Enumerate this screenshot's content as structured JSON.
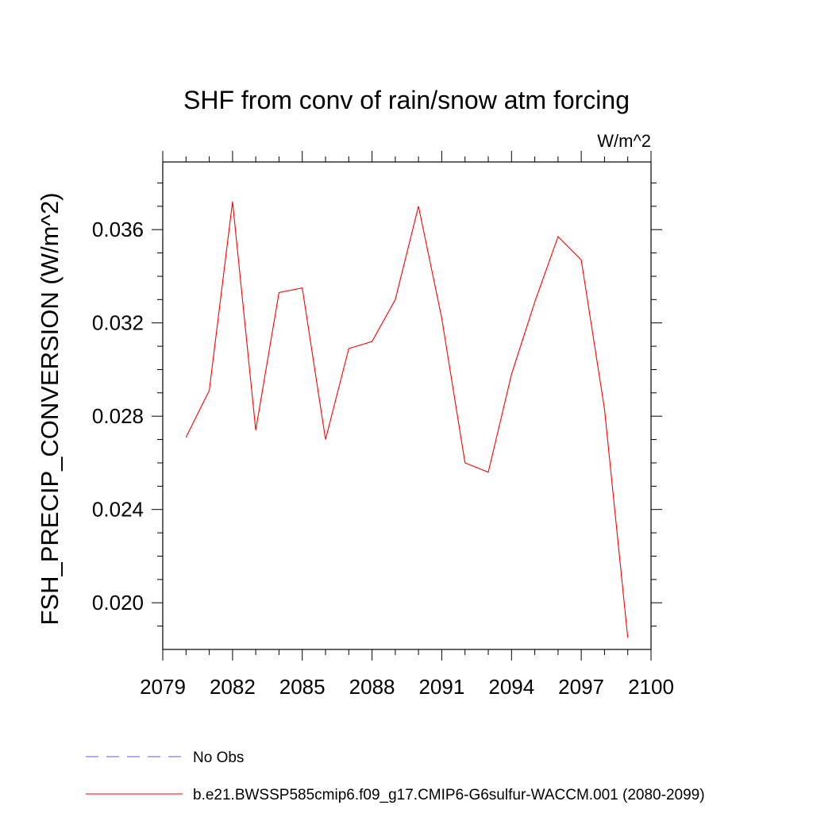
{
  "chart_data": {
    "type": "line",
    "title": "SHF from conv of rain/snow atm forcing",
    "units": "W/m^2",
    "ylabel": "FSH_PRECIP_CONVERSION  (W/m^2)",
    "xlabel": "",
    "xlim": [
      2079,
      2100
    ],
    "ylim": [
      0.018,
      0.0389
    ],
    "x_ticks": [
      "2079",
      "2082",
      "2085",
      "2088",
      "2091",
      "2094",
      "2097",
      "2100"
    ],
    "y_ticks": [
      "0.020",
      "0.024",
      "0.028",
      "0.032",
      "0.036"
    ],
    "series": [
      {
        "name": "b.e21.BWSSP585cmip6.f09_g17.CMIP6-G6sulfur-WACCM.001 (2080-2099)",
        "color": "#ff0000",
        "style": "solid",
        "x": [
          2080,
          2081,
          2082,
          2083,
          2084,
          2085,
          2086,
          2087,
          2088,
          2089,
          2090,
          2091,
          2092,
          2093,
          2094,
          2095,
          2096,
          2097,
          2098,
          2099
        ],
        "values": [
          0.0271,
          0.0291,
          0.0372,
          0.0274,
          0.0333,
          0.0335,
          0.027,
          0.0309,
          0.0312,
          0.033,
          0.037,
          0.0322,
          0.026,
          0.0256,
          0.0298,
          0.0329,
          0.0357,
          0.0347,
          0.0283,
          0.0185
        ]
      },
      {
        "name": "No Obs",
        "color": "#6a5acd",
        "style": "dashed",
        "x": [],
        "values": []
      }
    ],
    "legend_position": "bottom-left",
    "grid": false
  }
}
